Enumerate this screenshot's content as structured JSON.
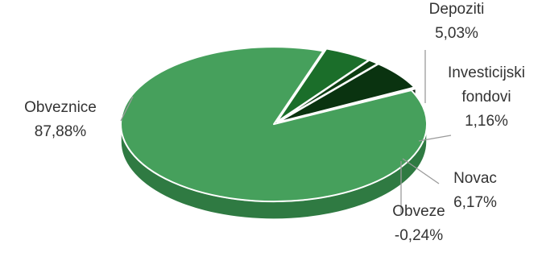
{
  "chart_data": {
    "type": "pie",
    "title": "",
    "style": "3d-exploded",
    "slices": [
      {
        "label": "Obveznice",
        "value": 87.88,
        "value_label": "87,88%",
        "color": "#46a05c",
        "side_color": "#2f7a42"
      },
      {
        "label": "Depoziti",
        "value": 5.03,
        "value_label": "5,03%",
        "color": "#1b6e2a",
        "side_color": "#0f4a19"
      },
      {
        "label": "Investicijski fondovi",
        "label_lines": [
          "Investicijski",
          "fondovi"
        ],
        "value": 1.16,
        "value_label": "1,16%",
        "color": "#0d3d12",
        "side_color": "#062508"
      },
      {
        "label": "Novac",
        "value": 6.17,
        "value_label": "6,17%",
        "color": "#0a3310",
        "side_color": "#051f08"
      },
      {
        "label": "Obveze",
        "value": -0.24,
        "value_label": "-0,24%",
        "color": "#1f3a23",
        "side_color": "#0e2211"
      }
    ],
    "legend": "none"
  }
}
